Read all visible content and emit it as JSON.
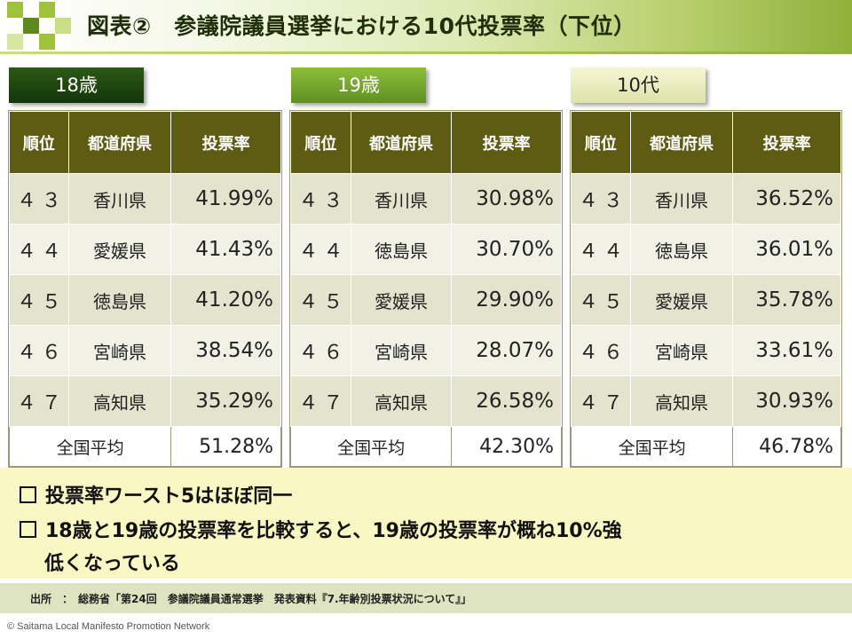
{
  "title": "図表②　参議院議員選挙における10代投票率（下位）",
  "colors": {
    "header_dark": "#1f2f0a",
    "tab18": "#14360a",
    "tab19": "#6fa12c",
    "tab10": "#eceec0",
    "table_header": "#5e5b12"
  },
  "columns": {
    "rank": "順位",
    "prefecture": "都道府県",
    "rate": "投票率"
  },
  "average_label": "全国平均",
  "tables": [
    {
      "label": "18歳",
      "rows": [
        {
          "rank": "４３",
          "prefecture": "香川県",
          "rate": "41.99%"
        },
        {
          "rank": "４４",
          "prefecture": "愛媛県",
          "rate": "41.43%"
        },
        {
          "rank": "４５",
          "prefecture": "徳島県",
          "rate": "41.20%"
        },
        {
          "rank": "４６",
          "prefecture": "宮崎県",
          "rate": "38.54%"
        },
        {
          "rank": "４７",
          "prefecture": "高知県",
          "rate": "35.29%"
        }
      ],
      "average": "51.28%"
    },
    {
      "label": "19歳",
      "rows": [
        {
          "rank": "４３",
          "prefecture": "香川県",
          "rate": "30.98%"
        },
        {
          "rank": "４４",
          "prefecture": "徳島県",
          "rate": "30.70%"
        },
        {
          "rank": "４５",
          "prefecture": "愛媛県",
          "rate": "29.90%"
        },
        {
          "rank": "４６",
          "prefecture": "宮崎県",
          "rate": "28.07%"
        },
        {
          "rank": "４７",
          "prefecture": "高知県",
          "rate": "26.58%"
        }
      ],
      "average": "42.30%"
    },
    {
      "label": "10代",
      "rows": [
        {
          "rank": "４３",
          "prefecture": "香川県",
          "rate": "36.52%"
        },
        {
          "rank": "４４",
          "prefecture": "徳島県",
          "rate": "36.01%"
        },
        {
          "rank": "４５",
          "prefecture": "愛媛県",
          "rate": "35.78%"
        },
        {
          "rank": "４６",
          "prefecture": "宮崎県",
          "rate": "33.61%"
        },
        {
          "rank": "４７",
          "prefecture": "高知県",
          "rate": "30.93%"
        }
      ],
      "average": "46.78%"
    }
  ],
  "notes": [
    "投票率ワースト5はほぼ同一",
    "18歳と19歳の投票率を比較すると、19歳の投票率が概ね10%強",
    "低くなっている"
  ],
  "source": "出所　：　総務省「第24回　参議院議員通常選挙　発表資料『7.年齢別投票状況について』」",
  "copyright": "© Saitama Local Manifesto Promotion Network"
}
